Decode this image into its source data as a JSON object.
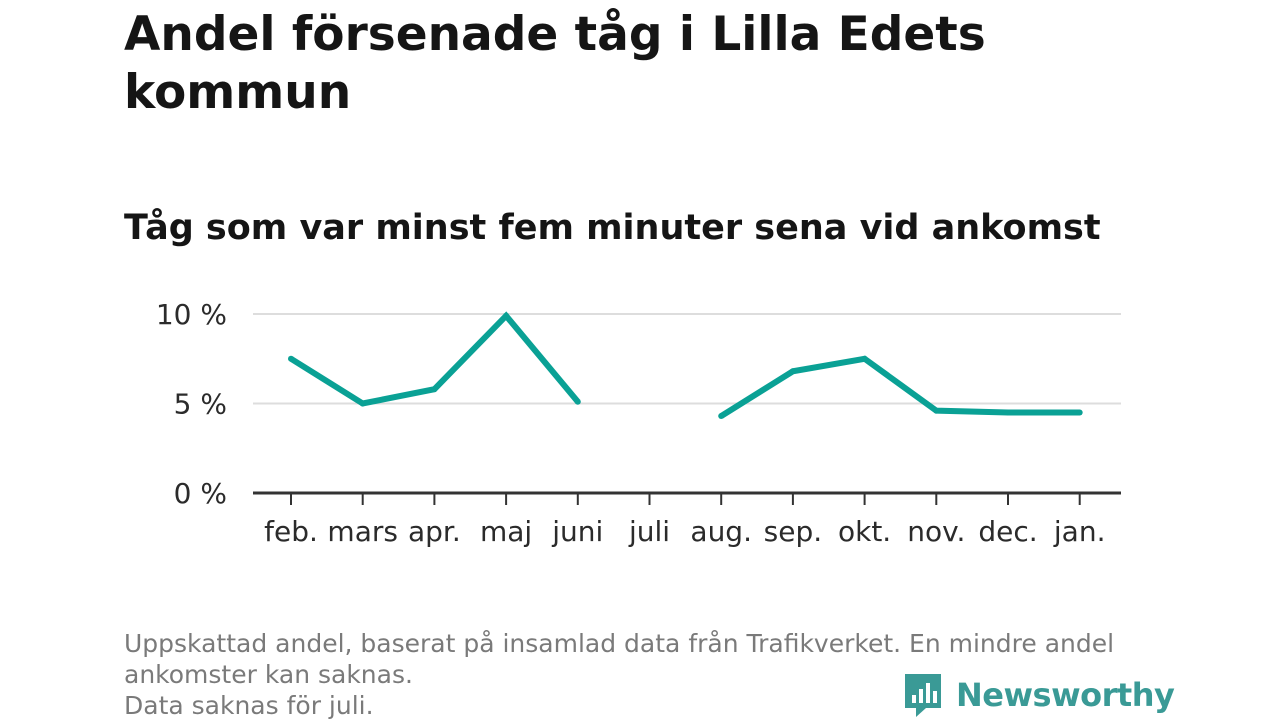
{
  "title": "Andel försenade tåg i Lilla Edets kommun",
  "subtitle": "Tåg som var minst fem minuter sena vid ankomst",
  "chart_data": {
    "type": "line",
    "title": "Andel försenade tåg i Lilla Edets kommun",
    "subtitle": "Tåg som var minst fem minuter sena vid ankomst",
    "categories": [
      "feb.",
      "mars",
      "apr.",
      "maj",
      "juni",
      "juli",
      "aug.",
      "sep.",
      "okt.",
      "nov.",
      "dec.",
      "jan."
    ],
    "series": [
      {
        "values": [
          7.5,
          5.0,
          5.8,
          9.9,
          5.1,
          null,
          4.3,
          6.8,
          7.5,
          4.6,
          4.5,
          4.5
        ]
      }
    ],
    "y_ticks": [
      {
        "value": 0,
        "label": "0 %"
      },
      {
        "value": 5,
        "label": "5 %"
      },
      {
        "value": 10,
        "label": "10 %"
      }
    ],
    "ylim": [
      0,
      10
    ],
    "grid": true,
    "line_color": "#0aa195"
  },
  "footnote": {
    "line1": "Uppskattad andel, baserat på insamlad data från Trafikverket. En mindre andel",
    "line2": "ankomster kan saknas.",
    "line3": "Data saknas för juli."
  },
  "logo": {
    "text": "Newsworthy",
    "icon": "bar-chart-icon",
    "color": "#3a9a96"
  }
}
